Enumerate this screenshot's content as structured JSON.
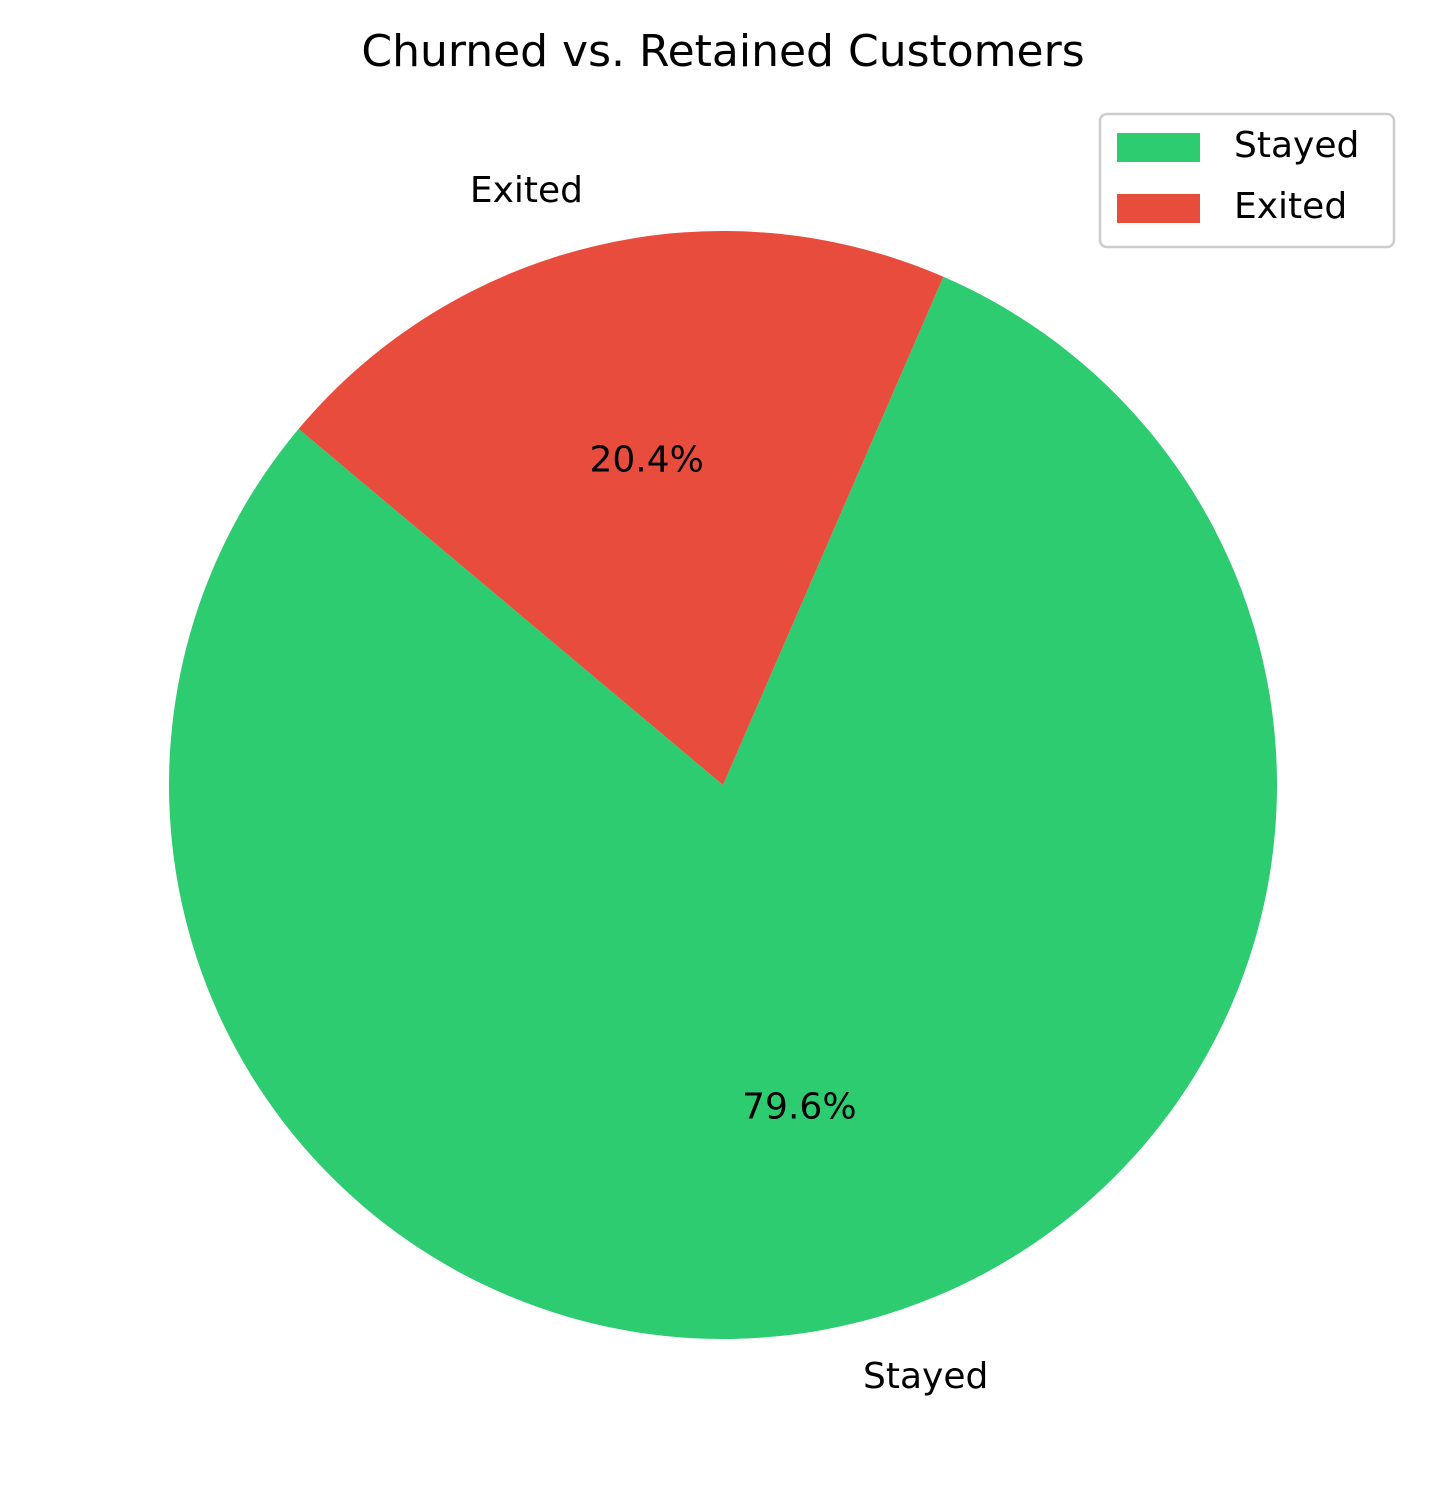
{
  "chart_data": {
    "type": "pie",
    "title": "Churned vs. Retained Customers",
    "categories": [
      "Stayed",
      "Exited"
    ],
    "values": [
      79.6,
      20.4
    ],
    "value_labels": [
      "79.6%",
      "20.4%"
    ],
    "colors": [
      "#2ecc71",
      "#e74c3c"
    ],
    "start_angle_deg": 140,
    "direction": "counterclockwise",
    "legend": {
      "position": "top-right",
      "entries": [
        "Stayed",
        "Exited"
      ]
    }
  }
}
